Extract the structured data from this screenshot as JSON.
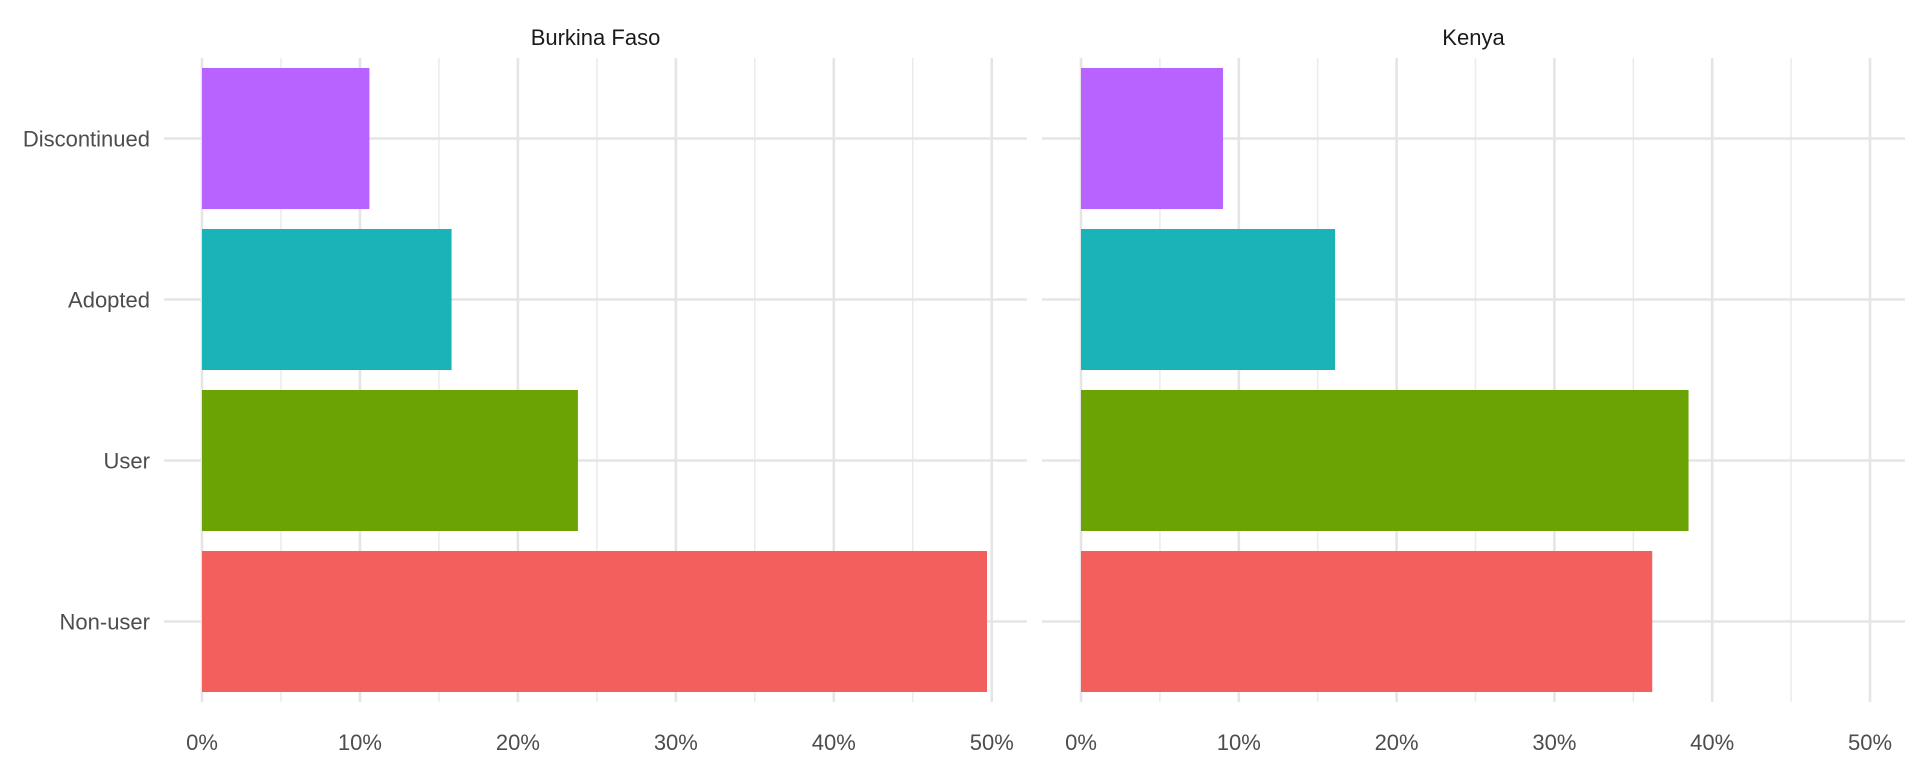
{
  "chart_data": {
    "type": "bar",
    "orientation": "horizontal",
    "categories": [
      "Non-user",
      "User",
      "Adopted",
      "Discontinued"
    ],
    "colors": {
      "Non-user": "#F25F5C",
      "User": "#6BA304",
      "Adopted": "#19B3B8",
      "Discontinued": "#B862FF"
    },
    "xlim": [
      0,
      50
    ],
    "xticks": [
      0,
      10,
      20,
      30,
      40,
      50
    ],
    "xtick_labels": [
      "0%",
      "10%",
      "20%",
      "30%",
      "40%",
      "50%"
    ],
    "grid": true,
    "legend": "none",
    "panels": [
      {
        "title": "Burkina Faso",
        "values": [
          49.7,
          23.8,
          15.8,
          10.6
        ]
      },
      {
        "title": "Kenya",
        "values": [
          36.2,
          38.5,
          16.1,
          9.0
        ]
      }
    ]
  }
}
